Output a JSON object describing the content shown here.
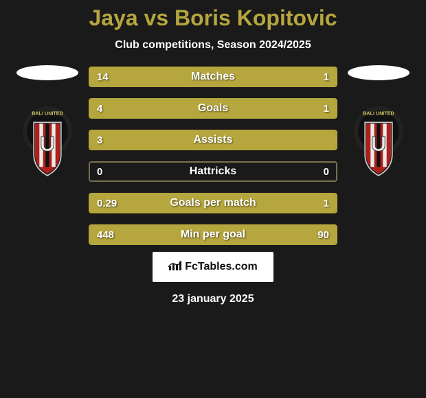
{
  "header": {
    "title": "Jaya vs Boris Kopitovic",
    "subtitle": "Club competitions, Season 2024/2025"
  },
  "colors": {
    "accent": "#b6a63e",
    "accent_light": "#c7b857",
    "background": "#1a1a1a",
    "white": "#ffffff",
    "border_muted": "#7a7052"
  },
  "club_logo": {
    "ring_text": "BALI UNITED",
    "ring_color": "#222222",
    "ring_text_color": "#d6c566",
    "inner_color": "#111111",
    "shield_outline": "#c8c8c8",
    "stripe_red": "#b0201a",
    "stripe_white": "#e9e9e9",
    "emblem_letter": "U"
  },
  "stats": {
    "type": "diverging-bar",
    "rows": [
      {
        "label": "Matches",
        "left": "14",
        "right": "1",
        "left_pct": 93.3,
        "right_pct": 6.7,
        "fill_left": "#b6a63e",
        "fill_right": "#b6a63e",
        "border": "#b6a63e"
      },
      {
        "label": "Goals",
        "left": "4",
        "right": "1",
        "left_pct": 80.0,
        "right_pct": 20.0,
        "fill_left": "#b6a63e",
        "fill_right": "#b6a63e",
        "border": "#b6a63e"
      },
      {
        "label": "Assists",
        "left": "3",
        "right": "",
        "left_pct": 100,
        "right_pct": 0,
        "fill_left": "#b6a63e",
        "fill_right": "#b6a63e",
        "border": "#b6a63e"
      },
      {
        "label": "Hattricks",
        "left": "0",
        "right": "0",
        "left_pct": 0,
        "right_pct": 0,
        "fill_left": "#b6a63e",
        "fill_right": "#b6a63e",
        "border": "#7a7052"
      },
      {
        "label": "Goals per match",
        "left": "0.29",
        "right": "1",
        "left_pct": 22.5,
        "right_pct": 77.5,
        "fill_left": "#b6a63e",
        "fill_right": "#b6a63e",
        "border": "#b6a63e"
      },
      {
        "label": "Min per goal",
        "left": "448",
        "right": "90",
        "left_pct": 83.3,
        "right_pct": 16.7,
        "fill_left": "#b6a63e",
        "fill_right": "#b6a63e",
        "border": "#b6a63e"
      }
    ]
  },
  "branding": {
    "text": "FcTables.com",
    "icon": "bar-chart-icon"
  },
  "footer": {
    "date": "23 january 2025"
  }
}
